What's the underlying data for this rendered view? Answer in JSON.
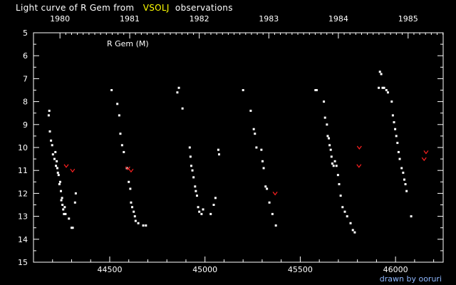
{
  "title_prefix": "Light curve of R Gem from",
  "title_source": "VSOLJ",
  "title_suffix": "observations",
  "star_label": "R Gem (M)",
  "credit": "drawn by ooruri",
  "colors": {
    "background": "#000000",
    "observation": "#ffffff",
    "fainter_than": "#ff2020",
    "source": "#ffff00",
    "credit": "#8fb8ff"
  },
  "chart_data": {
    "type": "scatter",
    "title": "Light curve of R Gem from VSOLJ observations",
    "xlabel": "",
    "ylabel": "",
    "xlim": [
      44100,
      46250
    ],
    "ylim": [
      15,
      5
    ],
    "y_inverted": true,
    "x_ticks": [
      44500,
      45000,
      45500,
      46000
    ],
    "y_ticks": [
      5,
      6,
      7,
      8,
      9,
      10,
      11,
      12,
      13,
      14,
      15
    ],
    "top_axis_years": [
      {
        "label": "1980",
        "jd": 44239
      },
      {
        "label": "1981",
        "jd": 44605
      },
      {
        "label": "1982",
        "jd": 44970
      },
      {
        "label": "1983",
        "jd": 45335
      },
      {
        "label": "1984",
        "jd": 45700
      },
      {
        "label": "1985",
        "jd": 46066
      }
    ],
    "series": [
      {
        "name": "",
        "marker": "dot",
        "points": [
          [
            44180,
            8.6
          ],
          [
            44183,
            8.4
          ],
          [
            44186,
            9.3
          ],
          [
            44192,
            9.7
          ],
          [
            44198,
            9.9
          ],
          [
            44202,
            10.3
          ],
          [
            44210,
            10.5
          ],
          [
            44215,
            10.2
          ],
          [
            44218,
            10.8
          ],
          [
            44222,
            10.6
          ],
          [
            44225,
            10.9
          ],
          [
            44228,
            11.1
          ],
          [
            44232,
            11.2
          ],
          [
            44236,
            11.6
          ],
          [
            44240,
            11.5
          ],
          [
            44244,
            11.9
          ],
          [
            44246,
            12.3
          ],
          [
            44250,
            12.2
          ],
          [
            44252,
            12.5
          ],
          [
            44256,
            12.7
          ],
          [
            44260,
            12.9
          ],
          [
            44264,
            12.6
          ],
          [
            44268,
            12.9
          ],
          [
            44286,
            13.1
          ],
          [
            44300,
            13.5
          ],
          [
            44306,
            13.5
          ],
          [
            44318,
            12.4
          ],
          [
            44322,
            12.0
          ],
          [
            44510,
            7.5
          ],
          [
            44540,
            8.1
          ],
          [
            44550,
            8.6
          ],
          [
            44556,
            9.4
          ],
          [
            44565,
            9.9
          ],
          [
            44574,
            10.2
          ],
          [
            44590,
            10.9
          ],
          [
            44600,
            11.5
          ],
          [
            44608,
            11.8
          ],
          [
            44612,
            12.4
          ],
          [
            44618,
            12.6
          ],
          [
            44626,
            12.8
          ],
          [
            44632,
            13.0
          ],
          [
            44636,
            13.2
          ],
          [
            44650,
            13.3
          ],
          [
            44676,
            13.4
          ],
          [
            44690,
            13.4
          ],
          [
            44855,
            7.6
          ],
          [
            44863,
            7.4
          ],
          [
            44882,
            8.3
          ],
          [
            44920,
            10.0
          ],
          [
            44924,
            10.4
          ],
          [
            44928,
            10.8
          ],
          [
            44934,
            11.0
          ],
          [
            44940,
            11.3
          ],
          [
            44948,
            11.7
          ],
          [
            44952,
            11.9
          ],
          [
            44958,
            12.1
          ],
          [
            44964,
            12.6
          ],
          [
            44970,
            12.8
          ],
          [
            44982,
            12.9
          ],
          [
            44990,
            12.7
          ],
          [
            45030,
            12.9
          ],
          [
            45046,
            12.5
          ],
          [
            45055,
            12.2
          ],
          [
            45070,
            10.1
          ],
          [
            45074,
            10.3
          ],
          [
            45200,
            7.5
          ],
          [
            45240,
            8.4
          ],
          [
            45256,
            9.2
          ],
          [
            45262,
            9.4
          ],
          [
            45270,
            10.0
          ],
          [
            45296,
            10.1
          ],
          [
            45302,
            10.6
          ],
          [
            45308,
            10.9
          ],
          [
            45318,
            11.7
          ],
          [
            45325,
            11.8
          ],
          [
            45338,
            12.4
          ],
          [
            45354,
            12.9
          ],
          [
            45372,
            13.4
          ],
          [
            45580,
            7.5
          ],
          [
            45586,
            7.5
          ],
          [
            45624,
            8.0
          ],
          [
            45630,
            8.7
          ],
          [
            45640,
            9.0
          ],
          [
            45644,
            9.5
          ],
          [
            45650,
            9.6
          ],
          [
            45654,
            9.9
          ],
          [
            45660,
            10.1
          ],
          [
            45664,
            10.4
          ],
          [
            45668,
            10.7
          ],
          [
            45675,
            10.8
          ],
          [
            45682,
            10.6
          ],
          [
            45690,
            10.8
          ],
          [
            45698,
            11.2
          ],
          [
            45704,
            11.6
          ],
          [
            45712,
            12.1
          ],
          [
            45722,
            12.6
          ],
          [
            45734,
            12.8
          ],
          [
            45746,
            13.0
          ],
          [
            45764,
            13.3
          ],
          [
            45776,
            13.6
          ],
          [
            45786,
            13.7
          ],
          [
            45912,
            7.4
          ],
          [
            45918,
            6.7
          ],
          [
            45925,
            6.8
          ],
          [
            45932,
            7.4
          ],
          [
            45940,
            7.4
          ],
          [
            45952,
            7.5
          ],
          [
            45960,
            7.6
          ],
          [
            45980,
            8.0
          ],
          [
            45986,
            8.6
          ],
          [
            45992,
            8.9
          ],
          [
            45998,
            9.2
          ],
          [
            46004,
            9.5
          ],
          [
            46010,
            9.8
          ],
          [
            46016,
            10.2
          ],
          [
            46022,
            10.5
          ],
          [
            46032,
            10.9
          ],
          [
            46040,
            11.1
          ],
          [
            46046,
            11.4
          ],
          [
            46052,
            11.6
          ],
          [
            46058,
            11.9
          ],
          [
            46082,
            13.0
          ]
        ]
      },
      {
        "name": "",
        "marker": "fainter-than",
        "points": [
          [
            44272,
            10.8
          ],
          [
            44305,
            11.0
          ],
          [
            44595,
            10.9
          ],
          [
            44612,
            11.0
          ],
          [
            45368,
            12.0
          ],
          [
            45810,
            10.0
          ],
          [
            45808,
            10.8
          ],
          [
            46150,
            10.5
          ],
          [
            46160,
            10.2
          ]
        ]
      }
    ]
  }
}
